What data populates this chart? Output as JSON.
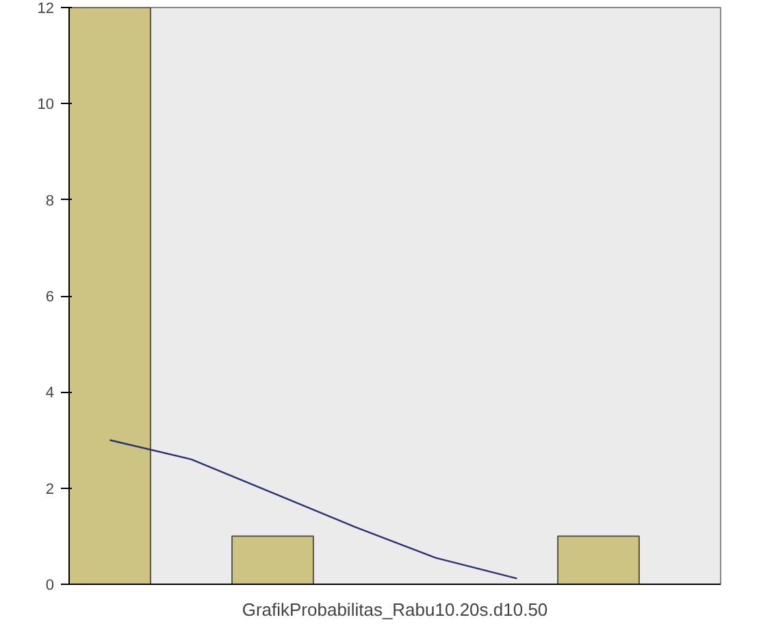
{
  "chart_data": {
    "type": "bar",
    "xlabel": "GrafikProbabilitas_Rabu10.20s.d10.50",
    "categories": [
      null,
      null,
      null,
      null,
      null,
      null,
      null,
      null
    ],
    "values": [
      12,
      0,
      1,
      0,
      0,
      0,
      1,
      0
    ],
    "color": "#cdc383",
    "series": [
      {
        "type": "line",
        "color": "#2a3370",
        "values": [
          3.0,
          2.6,
          1.9,
          1.2,
          0.55,
          0.12,
          null,
          null
        ]
      }
    ],
    "ylim": [
      0,
      12
    ],
    "yticks": [
      0,
      2,
      4,
      6,
      8,
      10,
      12
    ],
    "tick_labels": "y",
    "grid": false
  }
}
